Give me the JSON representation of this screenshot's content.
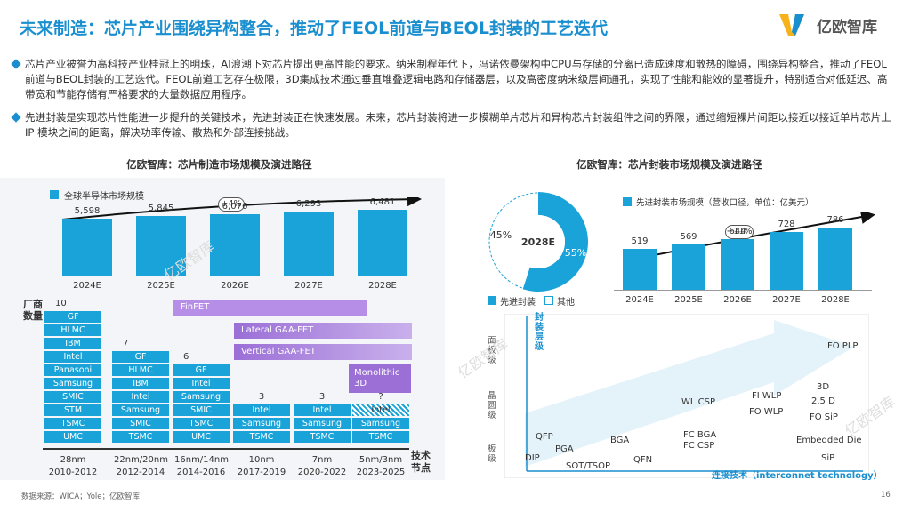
{
  "header": {
    "title": "未来制造：芯片产业围绕异构整合，推动了FEOL前道与BEOL封装的工艺迭代",
    "logo_text": "亿欧智库"
  },
  "bullets": [
    "芯片产业被誉为高科技产业桂冠上的明珠，AI浪潮下对芯片提出更高性能的要求。纳米制程年代下，冯诺依曼架构中CPU与存储的分离已造成速度和散热的障碍，围绕异构整合，推动了FEOL前道与BEOL封装的工艺迭代。FEOL前道工艺存在极限，3D集成技术通过垂直堆叠逻辑电路和存储器层，以及高密度纳米级层间通孔，实现了性能和能效的显著提升，特别适合对低延迟、高带宽和节能存储有严格要求的大量数据应用程序。",
    "先进封装是实现芯片性能进一步提升的关键技术，先进封装正在快速发展。未来，芯片封装将进一步模糊单片芯片和异构芯片封装组件之间的界限，通过缩短裸片间距以接近以接近单片芯片上 IP 模块之间的距离，解决功率传输、散热和外部连接挑战。"
  ],
  "left_chart_title": "亿欧智库：芯片制造市场规模及演进路径",
  "right_chart_title": "亿欧智库：芯片封装市场规模及演进路径",
  "footer": "数据来源：WICA；Yole；亿欧智库",
  "page_number": "16",
  "watermark": "亿欧智库",
  "colors": {
    "accent": "#1aa3d9",
    "title": "#1a8fcf",
    "purple": "#9b6fd6",
    "purple_light": "#c3a6ea"
  },
  "chart_data": [
    {
      "type": "bar",
      "legend": "全球半导体市场规模",
      "categories": [
        "2024E",
        "2025E",
        "2026E",
        "2027E",
        "2028E"
      ],
      "values": [
        5598,
        5845,
        6076,
        6293,
        6481
      ],
      "value_labels": [
        "5,598",
        "5,845",
        "6,076",
        "6,293",
        "6,481"
      ],
      "growth_label": "+4%",
      "ylim": [
        0,
        7000
      ]
    },
    {
      "type": "table",
      "ylabel": "厂商数量",
      "xlabel": "技术节点",
      "nodes": [
        {
          "node": "28nm",
          "years": "2010-2012",
          "count": "10",
          "vendors": [
            "GF",
            "HLMC",
            "IBM",
            "Intel",
            "Panasoni",
            "Samsung",
            "SMIC",
            "STM",
            "TSMC",
            "UMC"
          ]
        },
        {
          "node": "22nm/20nm",
          "years": "2012-2014",
          "count": "7",
          "vendors": [
            "GF",
            "HLMC",
            "IBM",
            "Intel",
            "Samsung",
            "SMIC",
            "TSMC"
          ]
        },
        {
          "node": "16nm/14nm",
          "years": "2014-2016",
          "count": "6",
          "vendors": [
            "GF",
            "Intel",
            "Samsung",
            "SMIC",
            "TSMC",
            "UMC"
          ]
        },
        {
          "node": "10nm",
          "years": "2017-2019",
          "count": "3",
          "vendors": [
            "Intel",
            "Samsung",
            "TSMC"
          ]
        },
        {
          "node": "7nm",
          "years": "2020-2022",
          "count": "3",
          "vendors": [
            "Intel",
            "Samsung",
            "TSMC"
          ]
        },
        {
          "node": "5nm/3nm",
          "years": "2023-2025",
          "count": "?",
          "vendors": [
            "Intel",
            "Samsung",
            "TSMC"
          ]
        }
      ],
      "transistor_tech": [
        "FinFET",
        "Lateral GAA-FET",
        "Vertical GAA-FET",
        "Monolithic 3D"
      ]
    },
    {
      "type": "pie",
      "center_label": "2028E",
      "slices": [
        {
          "name": "先进封装",
          "value": 55,
          "label": "55%"
        },
        {
          "name": "其他",
          "value": 45,
          "label": "45%"
        }
      ]
    },
    {
      "type": "bar",
      "legend": "先进封装市场规模（营收口径，单位：亿美元）",
      "categories": [
        "2024E",
        "2025E",
        "2026E",
        "2027E",
        "2028E"
      ],
      "values": [
        519,
        569,
        644,
        728,
        786
      ],
      "growth_label": "+11%",
      "ylim": [
        0,
        900
      ]
    },
    {
      "type": "scatter",
      "ylabel": "封装层级",
      "xlabel": "连接技术（interconnet technology）",
      "y_levels": [
        "面板级",
        "晶圆级",
        "板级"
      ],
      "items": [
        "FO PLP",
        "3D",
        "2.5 D",
        "FO SiP",
        "FI WLP",
        "FO WLP",
        "WL CSP",
        "FC BGA",
        "FC CSP",
        "Embedded Die",
        "SiP",
        "QFP",
        "DIP",
        "PGA",
        "SOT/TSOP",
        "BGA",
        "QFN"
      ]
    }
  ]
}
